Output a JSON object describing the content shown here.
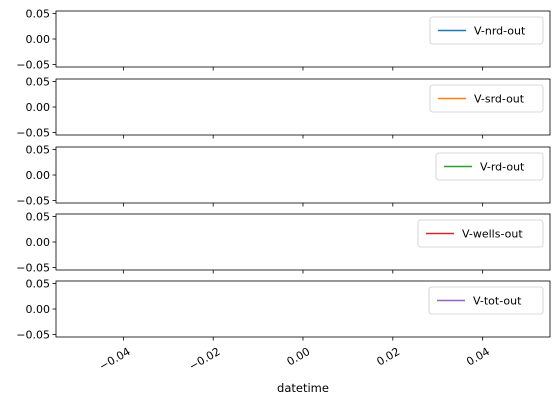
{
  "chart_data": [
    {
      "type": "line",
      "series": [
        {
          "name": "V-nrd-out",
          "color": "#1f77b4",
          "x": [],
          "y": []
        }
      ],
      "yticks": [
        "0.05",
        "0.00",
        "−0.05"
      ],
      "ylim": [
        -0.055,
        0.055
      ],
      "xlim": [
        -0.055,
        0.055
      ],
      "legend_loc": "upper right"
    },
    {
      "type": "line",
      "series": [
        {
          "name": "V-srd-out",
          "color": "#ff7f0e",
          "x": [],
          "y": []
        }
      ],
      "yticks": [
        "0.05",
        "0.00",
        "−0.05"
      ],
      "ylim": [
        -0.055,
        0.055
      ],
      "xlim": [
        -0.055,
        0.055
      ],
      "legend_loc": "upper right"
    },
    {
      "type": "line",
      "series": [
        {
          "name": "V-rd-out",
          "color": "#2ca02c",
          "x": [],
          "y": []
        }
      ],
      "yticks": [
        "0.05",
        "0.00",
        "−0.05"
      ],
      "ylim": [
        -0.055,
        0.055
      ],
      "xlim": [
        -0.055,
        0.055
      ],
      "legend_loc": "upper right"
    },
    {
      "type": "line",
      "series": [
        {
          "name": "V-wells-out",
          "color": "#d62728",
          "x": [],
          "y": []
        }
      ],
      "yticks": [
        "0.05",
        "0.00",
        "−0.05"
      ],
      "ylim": [
        -0.055,
        0.055
      ],
      "xlim": [
        -0.055,
        0.055
      ],
      "legend_loc": "upper right"
    },
    {
      "type": "line",
      "series": [
        {
          "name": "V-tot-out",
          "color": "#9467bd",
          "x": [],
          "y": []
        }
      ],
      "yticks": [
        "0.05",
        "0.00",
        "−0.05"
      ],
      "ylim": [
        -0.055,
        0.055
      ],
      "xlim": [
        -0.055,
        0.055
      ],
      "legend_loc": "upper right",
      "xticks": [
        "−0.04",
        "−0.02",
        "0.00",
        "0.02",
        "0.04"
      ],
      "xlabel": "datetime"
    }
  ]
}
